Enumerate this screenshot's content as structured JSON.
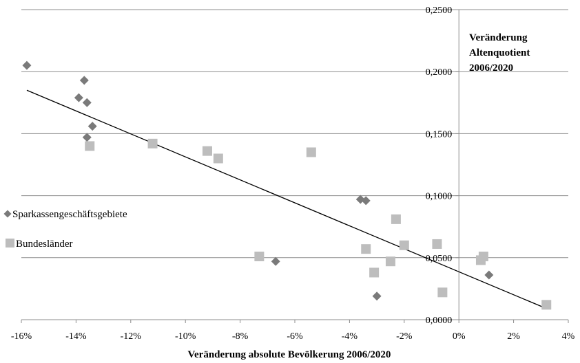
{
  "chart_data": {
    "type": "scatter",
    "title": [
      "Veränderung",
      "Altenquotient",
      "2006/2020"
    ],
    "xlabel": "Veränderung absolute Bevölkerung 2006/2020",
    "ylabel": "",
    "xlim": [
      -16,
      4
    ],
    "ylim": [
      0,
      0.25
    ],
    "x_ticks": [
      -16,
      -14,
      -12,
      -10,
      -8,
      -6,
      -4,
      -2,
      0,
      2,
      4
    ],
    "x_tick_labels": [
      "-16%",
      "-14%",
      "-12%",
      "-10%",
      "-8%",
      "-6%",
      "-4%",
      "-2%",
      "0%",
      "2%",
      "4%"
    ],
    "y_ticks": [
      0,
      0.05,
      0.1,
      0.15,
      0.2,
      0.25
    ],
    "y_tick_labels": [
      "0,0000",
      "0,0500",
      "0,1000",
      "0,1500",
      "0,2000",
      "0,2500"
    ],
    "grid": "horizontal",
    "legend_position": "left",
    "series": [
      {
        "name": "Sparkassengeschäftsgebiete",
        "marker": "diamond",
        "color": "#7a7a7a",
        "points": [
          {
            "x": -15.8,
            "y": 0.205
          },
          {
            "x": -13.7,
            "y": 0.193
          },
          {
            "x": -13.9,
            "y": 0.179
          },
          {
            "x": -13.6,
            "y": 0.175
          },
          {
            "x": -13.4,
            "y": 0.156
          },
          {
            "x": -13.6,
            "y": 0.147
          },
          {
            "x": -6.7,
            "y": 0.047
          },
          {
            "x": -3.6,
            "y": 0.097
          },
          {
            "x": -3.4,
            "y": 0.096
          },
          {
            "x": -3.0,
            "y": 0.019
          },
          {
            "x": 1.1,
            "y": 0.036
          }
        ]
      },
      {
        "name": "Bundesländer",
        "marker": "square",
        "color": "#bdbdbd",
        "points": [
          {
            "x": -13.5,
            "y": 0.14
          },
          {
            "x": -11.2,
            "y": 0.142
          },
          {
            "x": -9.2,
            "y": 0.136
          },
          {
            "x": -8.8,
            "y": 0.13
          },
          {
            "x": -5.4,
            "y": 0.135
          },
          {
            "x": -7.3,
            "y": 0.051
          },
          {
            "x": -3.4,
            "y": 0.057
          },
          {
            "x": -3.1,
            "y": 0.038
          },
          {
            "x": -2.5,
            "y": 0.047
          },
          {
            "x": -2.3,
            "y": 0.081
          },
          {
            "x": -2.0,
            "y": 0.06
          },
          {
            "x": -0.8,
            "y": 0.061
          },
          {
            "x": -0.6,
            "y": 0.022
          },
          {
            "x": 0.8,
            "y": 0.048
          },
          {
            "x": 0.9,
            "y": 0.051
          },
          {
            "x": 3.2,
            "y": 0.012
          }
        ]
      }
    ],
    "trendline": {
      "x": [
        -15.8,
        3.2
      ],
      "y": [
        0.185,
        0.009
      ],
      "color": "#000000"
    }
  }
}
